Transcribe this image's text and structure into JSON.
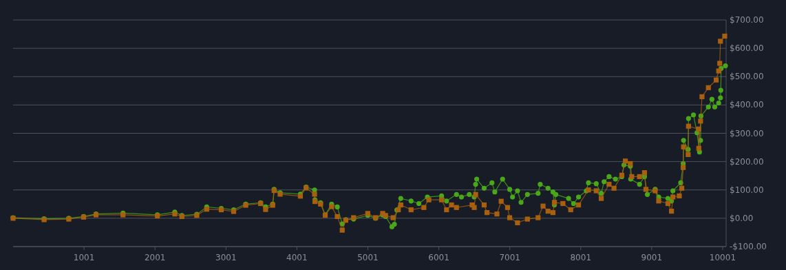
{
  "chart_data": {
    "type": "line",
    "xlim": [
      1,
      10050
    ],
    "xticks": [
      1001,
      2001,
      3001,
      4001,
      5001,
      6001,
      7001,
      8001,
      9001,
      10001
    ],
    "ylim": [
      -100,
      700
    ],
    "yticks": [
      {
        "value": -100,
        "label": "-$100.00"
      },
      {
        "value": 0,
        "label": "$0.00"
      },
      {
        "value": 100,
        "label": "$100.00"
      },
      {
        "value": 200,
        "label": "$200.00"
      },
      {
        "value": 300,
        "label": "$300.00"
      },
      {
        "value": 400,
        "label": "$400.00"
      },
      {
        "value": 500,
        "label": "$500.00"
      },
      {
        "value": 600,
        "label": "$600.00"
      },
      {
        "value": 700,
        "label": "$700.00"
      }
    ],
    "grid": "y",
    "series": [
      {
        "color": "#4aa71a",
        "marker": "circle",
        "x": [
          1,
          438,
          786,
          995,
          1170,
          1550,
          2035,
          2280,
          2380,
          2590,
          2730,
          2935,
          3110,
          3280,
          3490,
          3560,
          3660,
          3680,
          3765,
          4050,
          4130,
          4250,
          4255,
          4335,
          4400,
          4490,
          4570,
          4640,
          4690,
          4800,
          5000,
          5110,
          5210,
          5250,
          5340,
          5375,
          5410,
          5465,
          5610,
          5720,
          5840,
          6040,
          6110,
          6250,
          6320,
          6430,
          6500,
          6520,
          6535,
          6640,
          6750,
          6790,
          6900,
          7000,
          7040,
          7110,
          7160,
          7250,
          7400,
          7430,
          7540,
          7610,
          7630,
          7650,
          7830,
          7900,
          7970,
          8080,
          8110,
          8220,
          8290,
          8330,
          8400,
          8490,
          8580,
          8610,
          8700,
          8705,
          8830,
          8900,
          8940,
          9050,
          9100,
          9230,
          9280,
          9300,
          9410,
          9445,
          9450,
          9515,
          9520,
          9590,
          9640,
          9675,
          9690,
          9695,
          9800,
          9850,
          9890,
          9945,
          9970,
          9975,
          9980,
          10040
        ],
        "values": [
          2,
          -2,
          0,
          6,
          15,
          18,
          12,
          22,
          10,
          14,
          40,
          35,
          30,
          50,
          55,
          40,
          50,
          102,
          90,
          85,
          110,
          100,
          65,
          55,
          12,
          50,
          40,
          -20,
          -5,
          -3,
          10,
          0,
          12,
          6,
          -30,
          -21,
          29,
          70,
          61,
          52,
          75,
          79,
          61,
          84,
          75,
          84,
          75,
          120,
          138,
          106,
          125,
          93,
          138,
          102,
          75,
          97,
          56,
          84,
          88,
          120,
          106,
          93,
          47,
          84,
          70,
          52,
          75,
          97,
          125,
          122,
          88,
          129,
          147,
          138,
          147,
          188,
          184,
          138,
          120,
          147,
          84,
          102,
          75,
          70,
          61,
          97,
          125,
          193,
          275,
          243,
          352,
          365,
          302,
          234,
          275,
          361,
          393,
          420,
          393,
          407,
          425,
          452,
          529,
          538
        ]
      },
      {
        "color": "#a8600f",
        "marker": "square",
        "x": [
          1,
          438,
          786,
          995,
          1170,
          1550,
          2035,
          2280,
          2380,
          2590,
          2730,
          2935,
          3110,
          3280,
          3490,
          3560,
          3660,
          3680,
          3765,
          4050,
          4130,
          4250,
          4255,
          4335,
          4400,
          4490,
          4570,
          4640,
          4690,
          4800,
          5000,
          5110,
          5210,
          5250,
          5357,
          5430,
          5465,
          5610,
          5790,
          5860,
          6040,
          6110,
          6180,
          6250,
          6470,
          6500,
          6520,
          6640,
          6680,
          6820,
          6880,
          6970,
          7000,
          7110,
          7250,
          7400,
          7470,
          7540,
          7610,
          7630,
          7750,
          7860,
          7970,
          8110,
          8220,
          8290,
          8400,
          8470,
          8580,
          8630,
          8700,
          8720,
          8830,
          8900,
          8920,
          9050,
          9100,
          9230,
          9280,
          9300,
          9390,
          9425,
          9445,
          9450,
          9515,
          9520,
          9660,
          9665,
          9690,
          9710,
          9800,
          9910,
          9945,
          9960,
          9970,
          10030
        ],
        "values": [
          0,
          -5,
          -3,
          4,
          12,
          12,
          8,
          15,
          6,
          10,
          32,
          30,
          24,
          46,
          52,
          31,
          46,
          98,
          85,
          78,
          107,
          85,
          59,
          50,
          11,
          41,
          6,
          -42,
          -7,
          2,
          17,
          2,
          17,
          10,
          2,
          30,
          47,
          30,
          38,
          65,
          65,
          30,
          47,
          38,
          47,
          38,
          84,
          47,
          20,
          15,
          60,
          38,
          2,
          -16,
          -3,
          2,
          43,
          25,
          20,
          56,
          52,
          30,
          47,
          100,
          97,
          70,
          120,
          106,
          152,
          202,
          193,
          147,
          147,
          161,
          102,
          97,
          61,
          52,
          25,
          75,
          79,
          106,
          179,
          252,
          225,
          325,
          315,
          247,
          343,
          429,
          461,
          488,
          520,
          547,
          625,
          643
        ]
      }
    ]
  }
}
